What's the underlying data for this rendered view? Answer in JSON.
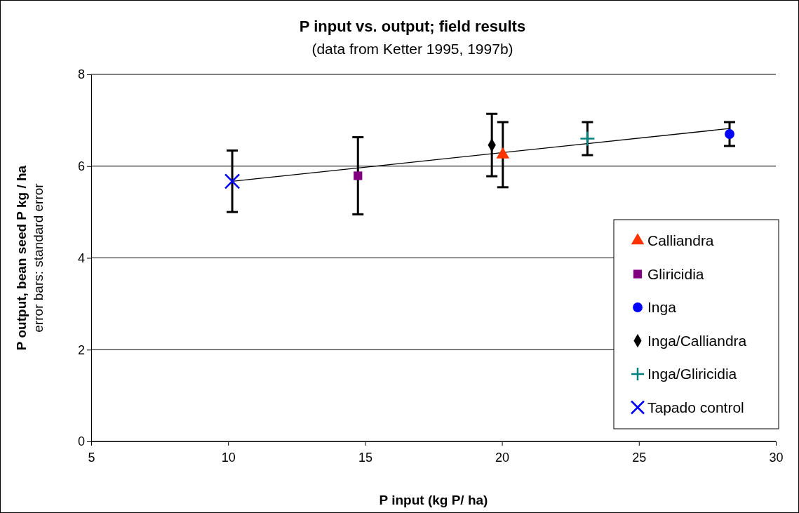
{
  "chart_data": {
    "type": "scatter",
    "title": "P input vs. output; field results",
    "subtitle": "(data from Ketter 1995, 1997b)",
    "xlabel": "P input (kg P/ ha)",
    "ylabel": "P output, bean seed P kg / ha",
    "annotations": [
      "error bars: standard error"
    ],
    "xlim": [
      5,
      30
    ],
    "xticks": [
      5,
      10,
      15,
      20,
      25,
      30
    ],
    "ylim": [
      0,
      8
    ],
    "yticks": [
      0,
      2,
      4,
      6,
      8
    ],
    "grid": "y",
    "legend": "bottom right",
    "series": [
      {
        "name": "Calliandra",
        "color": "#ff3300",
        "marker": "triangle",
        "x": [
          20.03
        ],
        "values": [
          6.25
        ],
        "errors": [
          0.71
        ]
      },
      {
        "name": "Gliricidia",
        "color": "#800080",
        "marker": "square",
        "x": [
          14.74
        ],
        "values": [
          5.79
        ],
        "errors": [
          0.84
        ]
      },
      {
        "name": "Inga",
        "color": "#0000ff",
        "marker": "circle",
        "x": [
          28.31
        ],
        "values": [
          6.7
        ],
        "errors": [
          0.26
        ]
      },
      {
        "name": "Inga/Calliandra",
        "color": "#000000",
        "marker": "diamond",
        "x": [
          19.63
        ],
        "values": [
          6.46
        ],
        "errors": [
          0.68
        ]
      },
      {
        "name": "Inga/Gliricidia",
        "color": "#008080",
        "marker": "plus",
        "x": [
          23.12
        ],
        "values": [
          6.6
        ],
        "errors": [
          0.36
        ]
      },
      {
        "name": "Tapado control",
        "color": "#0000ff",
        "marker": "cross",
        "x": [
          10.15
        ],
        "values": [
          5.67
        ],
        "errors": [
          0.67
        ]
      },
      {
        "type": "line",
        "color": "#000000",
        "x": [
          10.15,
          28.31
        ],
        "values": [
          5.67,
          6.82
        ]
      }
    ]
  }
}
